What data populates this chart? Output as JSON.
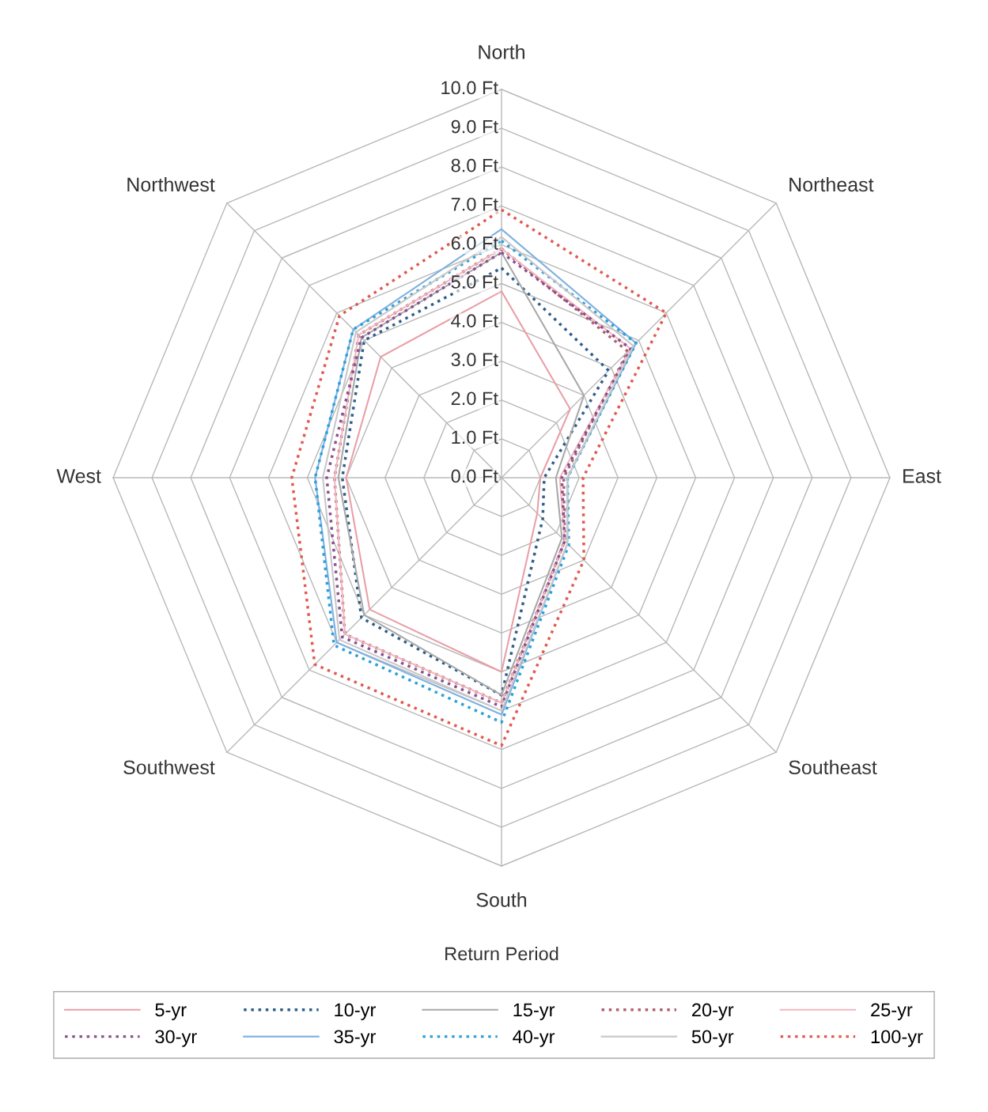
{
  "chart_data": {
    "type": "radar",
    "legend_title": "Return Period",
    "legend": "bottom",
    "grid": true,
    "categories": [
      "North",
      "Northeast",
      "East",
      "Southeast",
      "South",
      "Southwest",
      "West",
      "Northwest"
    ],
    "ylim": [
      0,
      10
    ],
    "yticks": [
      {
        "value": 0,
        "label": "0.0 Ft"
      },
      {
        "value": 1,
        "label": "1.0 Ft"
      },
      {
        "value": 2,
        "label": "2.0 Ft"
      },
      {
        "value": 3,
        "label": "3.0 Ft"
      },
      {
        "value": 4,
        "label": "4.0 Ft"
      },
      {
        "value": 5,
        "label": "5.0 Ft"
      },
      {
        "value": 6,
        "label": "6.0 Ft"
      },
      {
        "value": 7,
        "label": "7.0 Ft"
      },
      {
        "value": 8,
        "label": "8.0 Ft"
      },
      {
        "value": 9,
        "label": "9.0 Ft"
      },
      {
        "value": 10,
        "label": "10.0 Ft"
      }
    ],
    "series": [
      {
        "name": "5-yr",
        "color": "#e8a0a8",
        "line_style": "solid",
        "values": [
          4.8,
          2.5,
          1.0,
          1.3,
          5.0,
          4.8,
          4.0,
          4.4
        ]
      },
      {
        "name": "10-yr",
        "color": "#2e5f8a",
        "line_style": "dotted",
        "values": [
          5.4,
          3.9,
          1.1,
          1.5,
          5.6,
          5.1,
          4.1,
          5.0
        ]
      },
      {
        "name": "15-yr",
        "color": "#a8a8a8",
        "line_style": "solid",
        "values": [
          5.8,
          3.0,
          1.4,
          2.2,
          5.6,
          5.0,
          4.2,
          5.1
        ]
      },
      {
        "name": "20-yr",
        "color": "#b06070",
        "line_style": "dotted",
        "values": [
          5.9,
          4.6,
          1.6,
          2.3,
          5.8,
          5.7,
          4.3,
          5.2
        ]
      },
      {
        "name": "25-yr",
        "color": "#f0b8c0",
        "line_style": "solid",
        "values": [
          5.9,
          4.7,
          1.5,
          2.3,
          5.8,
          5.7,
          4.3,
          5.2
        ]
      },
      {
        "name": "30-yr",
        "color": "#8a4f8f",
        "line_style": "dotted",
        "values": [
          5.8,
          4.7,
          1.55,
          2.3,
          5.9,
          5.8,
          4.5,
          5.1
        ]
      },
      {
        "name": "35-yr",
        "color": "#7fb0e0",
        "line_style": "solid",
        "values": [
          6.4,
          4.9,
          1.7,
          2.4,
          6.1,
          6.0,
          4.8,
          5.4
        ]
      },
      {
        "name": "40-yr",
        "color": "#2ea0d8",
        "line_style": "dotted",
        "values": [
          6.1,
          4.9,
          1.7,
          2.45,
          6.3,
          6.1,
          4.8,
          5.4
        ]
      },
      {
        "name": "50-yr",
        "color": "#c8c8c8",
        "line_style": "solid",
        "values": [
          6.2,
          4.8,
          1.7,
          2.4,
          6.0,
          5.9,
          4.6,
          5.3
        ]
      },
      {
        "name": "100-yr",
        "color": "#e05a50",
        "line_style": "dotted",
        "values": [
          6.9,
          6.0,
          2.1,
          3.0,
          6.9,
          6.8,
          5.4,
          5.9
        ]
      }
    ]
  }
}
